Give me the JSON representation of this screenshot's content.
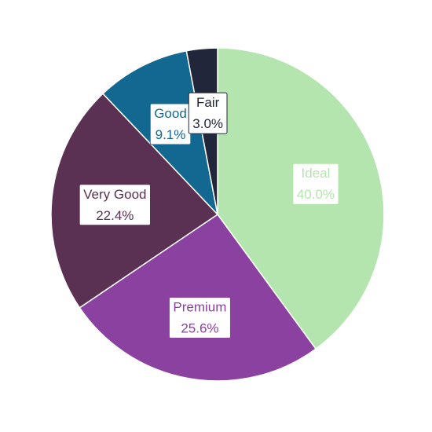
{
  "chart_data": {
    "type": "pie",
    "title": "",
    "start_angle_deg": 0,
    "direction": "clockwise",
    "slices": [
      {
        "label": "Ideal",
        "value": 40.0,
        "value_label": "40.0%",
        "color": "#b5e5ae",
        "label_color": "#b5e5ae",
        "border_color": "#b5e5ae"
      },
      {
        "label": "Premium",
        "value": 25.6,
        "value_label": "25.6%",
        "color": "#8a419f",
        "label_color": "#8a419f",
        "border_color": "#8a419f"
      },
      {
        "label": "Very Good",
        "value": 22.4,
        "value_label": "22.4%",
        "color": "#5a3152",
        "label_color": "#5a3152",
        "border_color": "#5a3152"
      },
      {
        "label": "Good",
        "value": 9.1,
        "value_label": "9.1%",
        "color": "#136892",
        "label_color": "#136892",
        "border_color": "#136892"
      },
      {
        "label": "Fair",
        "value": 3.0,
        "value_label": "3.0%",
        "color": "#22263a",
        "label_color": "#22263a",
        "border_color": "#22263a"
      }
    ]
  }
}
